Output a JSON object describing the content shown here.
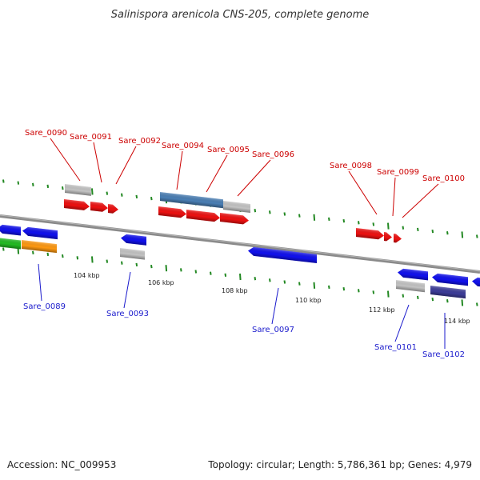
{
  "title": "Salinispora arenicola CNS-205, complete genome",
  "footer": {
    "accession": "Accession: NC_009953",
    "summary": "Topology: circular; Length: 5,786,361 bp; Genes: 4,979"
  },
  "colors": {
    "forward_gene": "#ee1111",
    "reverse_gene": "#1111ee",
    "gray_feature": "#c4c4c4",
    "steelblue_feature": "#4a7fb5",
    "green_feature": "#22bb22",
    "orange_feature": "#ff9911",
    "backbone": "#888888",
    "tick": "#228822",
    "top_label": "#cc0000",
    "bottom_label": "#1a1acc"
  },
  "scale_labels": [
    "104 kbp",
    "106 kbp",
    "108 kbp",
    "110 kbp",
    "112 kbp",
    "114 kbp"
  ],
  "top_genes": [
    "Sare_0090",
    "Sare_0091",
    "Sare_0092",
    "Sare_0094",
    "Sare_0095",
    "Sare_0096",
    "Sare_0098",
    "Sare_0099",
    "Sare_0100"
  ],
  "bottom_genes": [
    "Sare_0089",
    "Sare_0093",
    "Sare_0097",
    "Sare_0101",
    "Sare_0102"
  ]
}
